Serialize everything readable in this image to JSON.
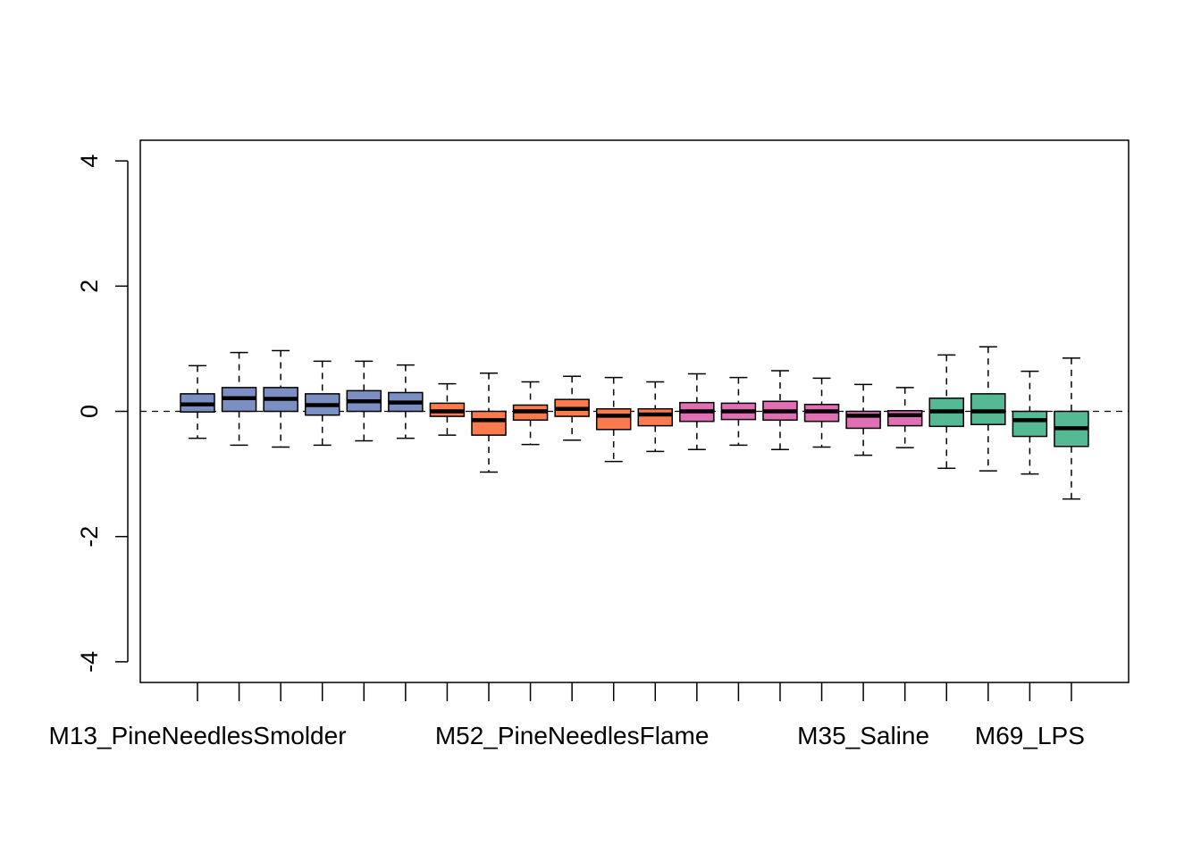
{
  "chart_data": {
    "type": "boxplot",
    "title": "",
    "xlabel": "",
    "ylabel": "",
    "ylim": [
      -4.33,
      4.33
    ],
    "y_ticks": [
      -4,
      -2,
      0,
      2,
      4
    ],
    "grid": false,
    "reference_line": 0,
    "tick_labels": [
      "M13_PineNeedlesSmolder",
      "",
      "",
      "",
      "",
      "",
      "",
      "",
      "",
      "M52_PineNeedlesFlame",
      "",
      "",
      "",
      "",
      "",
      "",
      "M35_Saline",
      "",
      "",
      "",
      "M69_LPS",
      ""
    ],
    "group_colors": {
      "M13_PineNeedlesSmolder": "#7b8fc2",
      "M52_PineNeedlesFlame": "#fb7a4e",
      "M35_Saline": "#e06fb4",
      "M69_LPS": "#55b993"
    },
    "boxes": [
      {
        "group": "M13_PineNeedlesSmolder",
        "lower": -0.43,
        "q1": -0.01,
        "median": 0.11,
        "q3": 0.28,
        "upper": 0.73
      },
      {
        "group": "M13_PineNeedlesSmolder",
        "lower": -0.54,
        "q1": 0.0,
        "median": 0.21,
        "q3": 0.38,
        "upper": 0.94
      },
      {
        "group": "M13_PineNeedlesSmolder",
        "lower": -0.57,
        "q1": 0.0,
        "median": 0.2,
        "q3": 0.38,
        "upper": 0.97
      },
      {
        "group": "M13_PineNeedlesSmolder",
        "lower": -0.54,
        "q1": -0.06,
        "median": 0.1,
        "q3": 0.28,
        "upper": 0.8
      },
      {
        "group": "M13_PineNeedlesSmolder",
        "lower": -0.47,
        "q1": 0.0,
        "median": 0.16,
        "q3": 0.33,
        "upper": 0.8
      },
      {
        "group": "M13_PineNeedlesSmolder",
        "lower": -0.43,
        "q1": 0.0,
        "median": 0.14,
        "q3": 0.3,
        "upper": 0.74
      },
      {
        "group": "M52_PineNeedlesFlame",
        "lower": -0.38,
        "q1": -0.08,
        "median": 0.0,
        "q3": 0.13,
        "upper": 0.44
      },
      {
        "group": "M52_PineNeedlesFlame",
        "lower": -0.97,
        "q1": -0.38,
        "median": -0.14,
        "q3": 0.0,
        "upper": 0.61
      },
      {
        "group": "M52_PineNeedlesFlame",
        "lower": -0.53,
        "q1": -0.14,
        "median": 0.0,
        "q3": 0.1,
        "upper": 0.47
      },
      {
        "group": "M52_PineNeedlesFlame",
        "lower": -0.46,
        "q1": -0.08,
        "median": 0.04,
        "q3": 0.19,
        "upper": 0.56
      },
      {
        "group": "M52_PineNeedlesFlame",
        "lower": -0.8,
        "q1": -0.29,
        "median": -0.07,
        "q3": 0.04,
        "upper": 0.54
      },
      {
        "group": "M52_PineNeedlesFlame",
        "lower": -0.64,
        "q1": -0.23,
        "median": -0.05,
        "q3": 0.04,
        "upper": 0.47
      },
      {
        "group": "M35_Saline",
        "lower": -0.61,
        "q1": -0.16,
        "median": 0.0,
        "q3": 0.14,
        "upper": 0.6
      },
      {
        "group": "M35_Saline",
        "lower": -0.54,
        "q1": -0.13,
        "median": 0.0,
        "q3": 0.13,
        "upper": 0.54
      },
      {
        "group": "M35_Saline",
        "lower": -0.61,
        "q1": -0.14,
        "median": 0.0,
        "q3": 0.16,
        "upper": 0.65
      },
      {
        "group": "M35_Saline",
        "lower": -0.57,
        "q1": -0.16,
        "median": 0.0,
        "q3": 0.11,
        "upper": 0.53
      },
      {
        "group": "M35_Saline",
        "lower": -0.7,
        "q1": -0.27,
        "median": -0.07,
        "q3": 0.0,
        "upper": 0.43
      },
      {
        "group": "M35_Saline",
        "lower": -0.58,
        "q1": -0.23,
        "median": -0.06,
        "q3": 0.01,
        "upper": 0.38
      },
      {
        "group": "M69_LPS",
        "lower": -0.91,
        "q1": -0.24,
        "median": 0.0,
        "q3": 0.21,
        "upper": 0.9
      },
      {
        "group": "M69_LPS",
        "lower": -0.95,
        "q1": -0.21,
        "median": 0.0,
        "q3": 0.28,
        "upper": 1.03
      },
      {
        "group": "M69_LPS",
        "lower": -1.0,
        "q1": -0.4,
        "median": -0.14,
        "q3": 0.0,
        "upper": 0.64
      },
      {
        "group": "M69_LPS",
        "lower": -1.4,
        "q1": -0.56,
        "median": -0.27,
        "q3": 0.0,
        "upper": 0.85
      }
    ]
  }
}
